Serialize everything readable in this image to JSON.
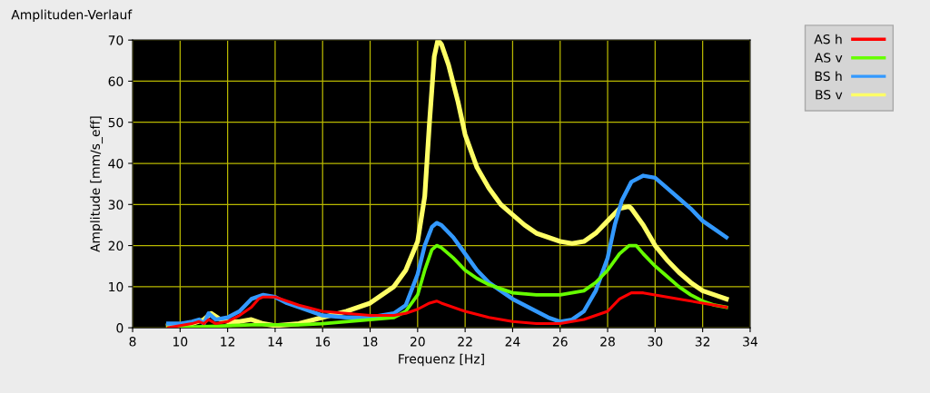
{
  "chart_data": {
    "type": "line",
    "title": "Amplituden-Verlauf",
    "xlabel": "Frequenz [Hz]",
    "ylabel": "Amplitude [mm/s_eff]",
    "xlim": [
      8,
      34
    ],
    "xticks": [
      8,
      10,
      12,
      14,
      16,
      18,
      20,
      22,
      24,
      26,
      28,
      30,
      32,
      34
    ],
    "ylim": [
      0,
      70
    ],
    "yticks": [
      0,
      10,
      20,
      30,
      40,
      50,
      60,
      70
    ],
    "grid": true,
    "legend": "top right",
    "line_style": "solid",
    "series": [
      {
        "name": "AS h",
        "color": "#ff0000",
        "x": [
          9.5,
          10,
          10.5,
          10.8,
          11,
          11.2,
          11.5,
          12,
          12.5,
          13,
          13.3,
          13.5,
          14,
          14.5,
          15,
          16,
          17,
          18,
          19,
          19.5,
          20,
          20.5,
          20.8,
          21,
          22,
          23,
          24,
          25,
          26,
          27,
          28,
          28.5,
          29,
          29.5,
          30,
          31,
          32,
          33
        ],
        "values": [
          0,
          0.5,
          1,
          1.5,
          1,
          2,
          1,
          1.5,
          3,
          5,
          7,
          7.5,
          7.5,
          6.5,
          5.5,
          4,
          3.5,
          3,
          3,
          3.5,
          4.5,
          6,
          6.5,
          6,
          4,
          2.5,
          1.5,
          1,
          1,
          2,
          4,
          7,
          8.5,
          8.5,
          8,
          7,
          6,
          5
        ]
      },
      {
        "name": "AS v",
        "color": "#66ff00",
        "x": [
          9.5,
          11,
          12,
          13,
          15,
          16,
          17,
          18,
          19,
          19.5,
          20,
          20.3,
          20.6,
          20.8,
          21,
          21.5,
          22,
          22.5,
          23,
          23.5,
          24,
          25,
          26,
          27,
          27.5,
          28,
          28.5,
          28.9,
          29.2,
          29.5,
          30,
          30.5,
          31,
          31.5,
          32,
          32.5,
          33
        ],
        "values": [
          0,
          0.3,
          0.5,
          0.7,
          0.7,
          1,
          1.5,
          2,
          2.5,
          4,
          8,
          14,
          19,
          20,
          19.5,
          17,
          14,
          12,
          10.5,
          9.5,
          8.5,
          8,
          8,
          9,
          11,
          14,
          18,
          20,
          20,
          18,
          15,
          12.5,
          10,
          8,
          6.5,
          5.5,
          5
        ]
      },
      {
        "name": "BS h",
        "color": "#3399ff",
        "x": [
          9.5,
          10,
          10.5,
          10.8,
          11,
          11.2,
          11.5,
          12,
          12.5,
          13,
          13.5,
          14,
          14.5,
          15,
          16,
          17,
          18,
          19,
          19.5,
          20,
          20.3,
          20.6,
          20.8,
          21,
          21.5,
          22,
          22.5,
          23,
          24,
          25,
          25.5,
          26,
          26.5,
          27,
          27.5,
          28,
          28.3,
          28.6,
          29,
          29.5,
          30,
          30.5,
          31,
          31.5,
          32,
          32.5,
          33
        ],
        "values": [
          1,
          1,
          1.5,
          2,
          1,
          3.5,
          2,
          2.5,
          4,
          7,
          8,
          7.5,
          6,
          5,
          3,
          2.5,
          2.5,
          3.5,
          5.5,
          13,
          20,
          24.5,
          25.5,
          25,
          22,
          18,
          14,
          11,
          7,
          4,
          2.5,
          1.5,
          2,
          4,
          9,
          17,
          25,
          31,
          35.5,
          37,
          36.5,
          34,
          31.5,
          29,
          26,
          24,
          22
        ]
      },
      {
        "name": "BS v",
        "color": "#ffff66",
        "x": [
          9.5,
          10,
          10.5,
          11,
          11.3,
          11.7,
          12,
          12.5,
          13,
          13.5,
          14,
          15,
          16,
          17,
          18,
          19,
          19.5,
          20,
          20.3,
          20.5,
          20.7,
          20.85,
          21,
          21.3,
          21.7,
          22,
          22.5,
          23,
          23.5,
          24,
          24.5,
          25,
          25.5,
          26,
          26.5,
          27,
          27.5,
          28,
          28.5,
          28.9,
          29,
          29.5,
          30,
          30.5,
          31,
          31.5,
          32,
          32.5,
          33
        ],
        "values": [
          0.5,
          0.8,
          1,
          2,
          3.5,
          2,
          1.5,
          1.5,
          2,
          1,
          0.5,
          1,
          2.5,
          4,
          6,
          10,
          14,
          21,
          32,
          50,
          66,
          70,
          69,
          64,
          55,
          47,
          39,
          34,
          30,
          27.5,
          25,
          23,
          22,
          21,
          20.5,
          21,
          23,
          26,
          29,
          29.5,
          29,
          25,
          20,
          16.5,
          13.5,
          11,
          9,
          8,
          7
        ]
      }
    ]
  }
}
